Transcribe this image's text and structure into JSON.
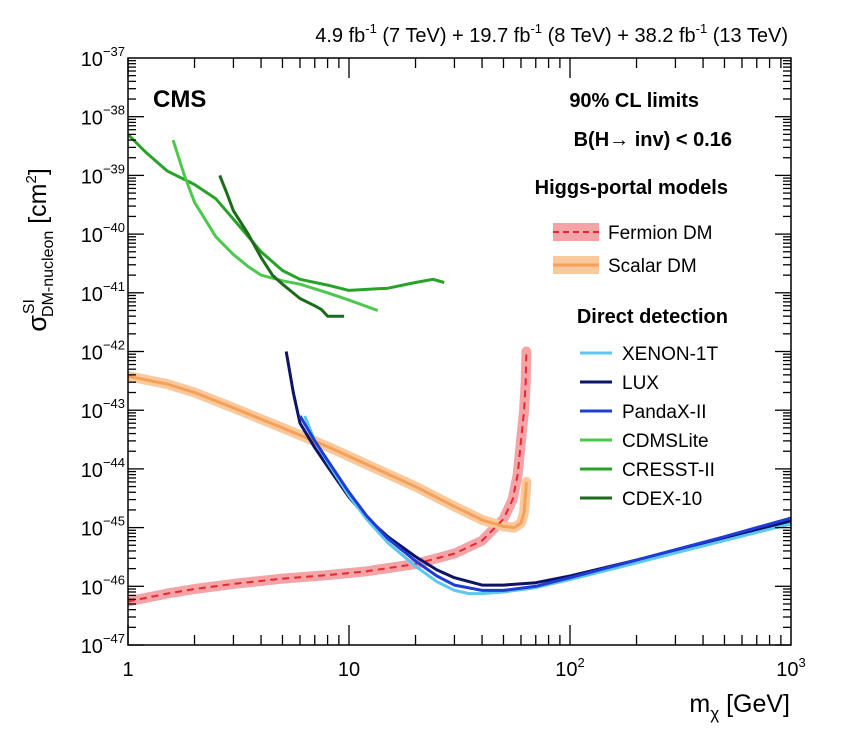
{
  "chart_data": {
    "type": "line",
    "xscale": "log",
    "yscale": "log",
    "xlim": [
      1,
      1000
    ],
    "ylim": [
      1e-47,
      1e-37
    ],
    "xlabel": "m",
    "xlabel_sub": "χ",
    "xlabel_unit": "[GeV]",
    "ylabel": "σ",
    "ylabel_sup": "SI",
    "ylabel_sub": "DM-nucleon",
    "ylabel_unit": "[cm",
    "ylabel_unit_sup": "2",
    "ylabel_unit_end": "]",
    "x_ticks": [
      {
        "value": 1,
        "base": "1",
        "exp": ""
      },
      {
        "value": 10,
        "base": "10",
        "exp": ""
      },
      {
        "value": 100,
        "base": "10",
        "exp": "2"
      },
      {
        "value": 1000,
        "base": "10",
        "exp": "3"
      }
    ],
    "y_ticks": [
      {
        "value": 1e-37,
        "base": "10",
        "exp": "−37"
      },
      {
        "value": 1e-38,
        "base": "10",
        "exp": "−38"
      },
      {
        "value": 1e-39,
        "base": "10",
        "exp": "−39"
      },
      {
        "value": 1e-40,
        "base": "10",
        "exp": "−40"
      },
      {
        "value": 1e-41,
        "base": "10",
        "exp": "−41"
      },
      {
        "value": 1e-42,
        "base": "10",
        "exp": "−42"
      },
      {
        "value": 1e-43,
        "base": "10",
        "exp": "−43"
      },
      {
        "value": 1e-44,
        "base": "10",
        "exp": "−44"
      },
      {
        "value": 1e-45,
        "base": "10",
        "exp": "−45"
      },
      {
        "value": 1e-46,
        "base": "10",
        "exp": "−46"
      },
      {
        "value": 1e-47,
        "base": "10",
        "exp": "−47"
      }
    ],
    "lumi": [
      {
        "text": "4.9 fb",
        "sup": "-1"
      },
      {
        "text": " (7 TeV) + 19.7 fb",
        "sup": "-1"
      },
      {
        "text": " (8 TeV) + 38.2 fb",
        "sup": "-1"
      },
      {
        "text": " (13 TeV)",
        "sup": ""
      }
    ],
    "experiment": "CMS",
    "annotations": [
      "90% CL limits",
      "B(H→ inv) < 0.16"
    ],
    "legend_groups": [
      {
        "title": "Higgs-portal models",
        "entries": [
          "fermion",
          "scalar"
        ]
      },
      {
        "title": "Direct detection",
        "entries": [
          "xenon",
          "lux",
          "pandax",
          "cdmslite",
          "cresst",
          "cdex"
        ]
      }
    ],
    "legend_placement": "right",
    "grid": false,
    "series": [
      {
        "id": "fermion",
        "name": "Fermion DM",
        "color": "#e8282e",
        "band_color": "#f4a3a7",
        "style": "dashed",
        "band": true,
        "points": [
          [
            1,
            5.5e-47
          ],
          [
            1.5,
            7.5e-47
          ],
          [
            2,
            9e-47
          ],
          [
            3,
            1.1e-46
          ],
          [
            5,
            1.35e-46
          ],
          [
            8,
            1.55e-46
          ],
          [
            12,
            1.8e-46
          ],
          [
            20,
            2.4e-46
          ],
          [
            30,
            3.6e-46
          ],
          [
            40,
            6e-46
          ],
          [
            50,
            1.4e-45
          ],
          [
            55,
            3e-45
          ],
          [
            58,
            8e-45
          ],
          [
            60,
            3e-44
          ],
          [
            62,
            1e-43
          ],
          [
            63,
            3e-43
          ],
          [
            63.5,
            1e-42
          ]
        ]
      },
      {
        "id": "scalar",
        "name": "Scalar DM",
        "color": "#f5a15a",
        "band_color": "#f9c99c",
        "style": "solid",
        "band": true,
        "points": [
          [
            1,
            3.8e-43
          ],
          [
            1.5,
            2.8e-43
          ],
          [
            2,
            2e-43
          ],
          [
            3,
            1.1e-43
          ],
          [
            5,
            5e-44
          ],
          [
            8,
            2.4e-44
          ],
          [
            12,
            1.2e-44
          ],
          [
            20,
            5e-45
          ],
          [
            30,
            2.3e-45
          ],
          [
            40,
            1.35e-45
          ],
          [
            50,
            1.05e-45
          ],
          [
            56,
            1e-45
          ],
          [
            60,
            1.2e-45
          ],
          [
            62,
            1.8e-45
          ],
          [
            63,
            4e-45
          ],
          [
            63.5,
            6e-45
          ]
        ]
      },
      {
        "id": "xenon",
        "name": "XENON-1T",
        "color": "#5cc8f0",
        "style": "solid",
        "band": false,
        "points": [
          [
            6.3,
            8e-44
          ],
          [
            7,
            3e-44
          ],
          [
            8,
            1.3e-44
          ],
          [
            10,
            3.5e-45
          ],
          [
            12,
            1.4e-45
          ],
          [
            15,
            5.5e-46
          ],
          [
            20,
            2.2e-46
          ],
          [
            25,
            1.2e-46
          ],
          [
            30,
            8.5e-47
          ],
          [
            35,
            7.5e-47
          ],
          [
            40,
            7.5e-47
          ],
          [
            50,
            8e-47
          ],
          [
            70,
            9.5e-47
          ],
          [
            100,
            1.3e-46
          ],
          [
            200,
            2.5e-46
          ],
          [
            300,
            3.7e-46
          ],
          [
            500,
            6e-46
          ],
          [
            700,
            8.3e-46
          ],
          [
            1000,
            1.15e-45
          ]
        ]
      },
      {
        "id": "lux",
        "name": "LUX",
        "color": "#0d1466",
        "style": "solid",
        "band": false,
        "points": [
          [
            5.2,
            1e-42
          ],
          [
            5.6,
            2e-43
          ],
          [
            6,
            6e-44
          ],
          [
            7,
            2.3e-44
          ],
          [
            8,
            1.1e-44
          ],
          [
            10,
            3.3e-45
          ],
          [
            12,
            1.5e-45
          ],
          [
            15,
            7e-46
          ],
          [
            20,
            3.2e-46
          ],
          [
            25,
            1.9e-46
          ],
          [
            30,
            1.4e-46
          ],
          [
            40,
            1.05e-46
          ],
          [
            50,
            1.05e-46
          ],
          [
            70,
            1.15e-46
          ],
          [
            100,
            1.5e-46
          ],
          [
            200,
            2.8e-46
          ],
          [
            300,
            4.1e-46
          ],
          [
            500,
            6.6e-46
          ],
          [
            700,
            9e-46
          ],
          [
            1000,
            1.3e-45
          ]
        ]
      },
      {
        "id": "pandax",
        "name": "PandaX-II",
        "color": "#1e3cd6",
        "style": "solid",
        "band": false,
        "points": [
          [
            6,
            8e-44
          ],
          [
            7,
            3e-44
          ],
          [
            8,
            1.4e-44
          ],
          [
            10,
            4e-45
          ],
          [
            12,
            1.6e-45
          ],
          [
            15,
            6.5e-46
          ],
          [
            20,
            2.7e-46
          ],
          [
            25,
            1.5e-46
          ],
          [
            30,
            1.05e-46
          ],
          [
            40,
            8.5e-47
          ],
          [
            50,
            8.5e-47
          ],
          [
            70,
            1e-46
          ],
          [
            100,
            1.4e-46
          ],
          [
            200,
            2.8e-46
          ],
          [
            300,
            4.2e-46
          ],
          [
            500,
            7e-46
          ],
          [
            700,
            1e-45
          ],
          [
            1000,
            1.45e-45
          ]
        ]
      },
      {
        "id": "cdmslite",
        "name": "CDMSLite",
        "color": "#4cc94c",
        "style": "solid",
        "band": false,
        "points": [
          [
            1.6,
            4e-39
          ],
          [
            1.8,
            1e-39
          ],
          [
            2,
            3.5e-40
          ],
          [
            2.5,
            9e-41
          ],
          [
            3,
            4.5e-41
          ],
          [
            3.5,
            2.8e-41
          ],
          [
            4,
            2e-41
          ],
          [
            5,
            1.6e-41
          ],
          [
            6,
            1.4e-41
          ],
          [
            8,
            1e-41
          ],
          [
            10,
            7.5e-42
          ],
          [
            13.5,
            5e-42
          ]
        ]
      },
      {
        "id": "cresst",
        "name": "CRESST-II",
        "color": "#28a228",
        "style": "solid",
        "band": false,
        "points": [
          [
            1,
            5e-39
          ],
          [
            1.2,
            2.5e-39
          ],
          [
            1.5,
            1.2e-39
          ],
          [
            2,
            7e-40
          ],
          [
            2.5,
            4e-40
          ],
          [
            3,
            1.8e-40
          ],
          [
            4,
            5e-41
          ],
          [
            5,
            2.4e-41
          ],
          [
            6,
            1.7e-41
          ],
          [
            8,
            1.35e-41
          ],
          [
            10,
            1.1e-41
          ],
          [
            15,
            1.2e-41
          ],
          [
            20,
            1.5e-41
          ],
          [
            24,
            1.7e-41
          ],
          [
            27,
            1.5e-41
          ]
        ]
      },
      {
        "id": "cdex",
        "name": "CDEX-10",
        "color": "#1b6b1b",
        "style": "solid",
        "band": false,
        "points": [
          [
            2.6,
            1e-39
          ],
          [
            2.8,
            5e-40
          ],
          [
            3,
            2.5e-40
          ],
          [
            3.5,
            1e-40
          ],
          [
            4,
            4e-41
          ],
          [
            4.5,
            2e-41
          ],
          [
            5,
            1.4e-41
          ],
          [
            6,
            8e-42
          ],
          [
            7,
            6e-42
          ],
          [
            7.5,
            5.2e-42
          ],
          [
            8,
            4e-42
          ],
          [
            9.5,
            4e-42
          ]
        ]
      }
    ]
  }
}
